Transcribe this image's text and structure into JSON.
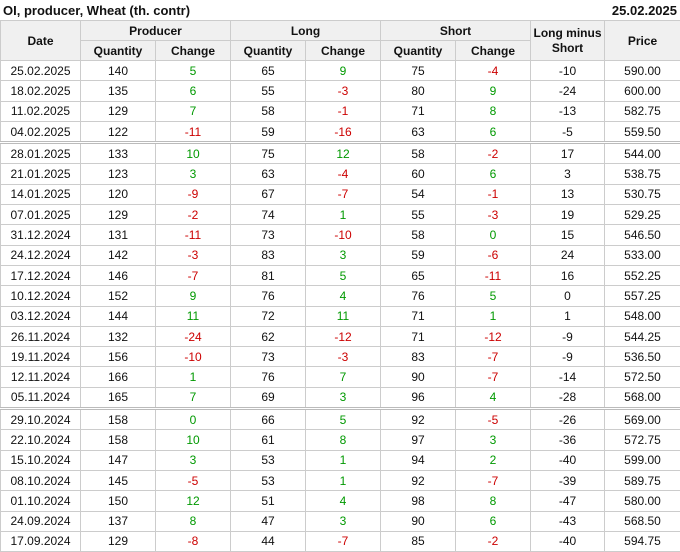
{
  "header": {
    "title": "OI, producer, Wheat (th. contr)",
    "date": "25.02.2025"
  },
  "table": {
    "columns": {
      "date": "Date",
      "groups": [
        "Producer",
        "Long",
        "Short"
      ],
      "sub": [
        "Quantity",
        "Change"
      ],
      "diff": "Long minus Short",
      "price": "Price"
    },
    "groups": [
      {
        "rows": [
          [
            "25.02.2025",
            "140",
            "5",
            "65",
            "9",
            "75",
            "-4",
            "-10",
            "590.00"
          ],
          [
            "18.02.2025",
            "135",
            "6",
            "55",
            "-3",
            "80",
            "9",
            "-24",
            "600.00"
          ],
          [
            "11.02.2025",
            "129",
            "7",
            "58",
            "-1",
            "71",
            "8",
            "-13",
            "582.75"
          ],
          [
            "04.02.2025",
            "122",
            "-11",
            "59",
            "-16",
            "63",
            "6",
            "-5",
            "559.50"
          ]
        ]
      },
      {
        "rows": [
          [
            "28.01.2025",
            "133",
            "10",
            "75",
            "12",
            "58",
            "-2",
            "17",
            "544.00"
          ],
          [
            "21.01.2025",
            "123",
            "3",
            "63",
            "-4",
            "60",
            "6",
            "3",
            "538.75"
          ],
          [
            "14.01.2025",
            "120",
            "-9",
            "67",
            "-7",
            "54",
            "-1",
            "13",
            "530.75"
          ],
          [
            "07.01.2025",
            "129",
            "-2",
            "74",
            "1",
            "55",
            "-3",
            "19",
            "529.25"
          ],
          [
            "31.12.2024",
            "131",
            "-11",
            "73",
            "-10",
            "58",
            "0",
            "15",
            "546.50"
          ],
          [
            "24.12.2024",
            "142",
            "-3",
            "83",
            "3",
            "59",
            "-6",
            "24",
            "533.00"
          ],
          [
            "17.12.2024",
            "146",
            "-7",
            "81",
            "5",
            "65",
            "-11",
            "16",
            "552.25"
          ],
          [
            "10.12.2024",
            "152",
            "9",
            "76",
            "4",
            "76",
            "5",
            "0",
            "557.25"
          ],
          [
            "03.12.2024",
            "144",
            "11",
            "72",
            "11",
            "71",
            "1",
            "1",
            "548.00"
          ],
          [
            "26.11.2024",
            "132",
            "-24",
            "62",
            "-12",
            "71",
            "-12",
            "-9",
            "544.25"
          ],
          [
            "19.11.2024",
            "156",
            "-10",
            "73",
            "-3",
            "83",
            "-7",
            "-9",
            "536.50"
          ],
          [
            "12.11.2024",
            "166",
            "1",
            "76",
            "7",
            "90",
            "-7",
            "-14",
            "572.50"
          ],
          [
            "05.11.2024",
            "165",
            "7",
            "69",
            "3",
            "96",
            "4",
            "-28",
            "568.00"
          ]
        ]
      },
      {
        "rows": [
          [
            "29.10.2024",
            "158",
            "0",
            "66",
            "5",
            "92",
            "-5",
            "-26",
            "569.00"
          ],
          [
            "22.10.2024",
            "158",
            "10",
            "61",
            "8",
            "97",
            "3",
            "-36",
            "572.75"
          ],
          [
            "15.10.2024",
            "147",
            "3",
            "53",
            "1",
            "94",
            "2",
            "-40",
            "599.00"
          ],
          [
            "08.10.2024",
            "145",
            "-5",
            "53",
            "1",
            "92",
            "-7",
            "-39",
            "589.75"
          ],
          [
            "01.10.2024",
            "150",
            "12",
            "51",
            "4",
            "98",
            "8",
            "-47",
            "580.00"
          ],
          [
            "24.09.2024",
            "137",
            "8",
            "47",
            "3",
            "90",
            "6",
            "-43",
            "568.50"
          ],
          [
            "17.09.2024",
            "129",
            "-8",
            "44",
            "-7",
            "85",
            "-2",
            "-40",
            "594.75"
          ]
        ]
      }
    ]
  }
}
